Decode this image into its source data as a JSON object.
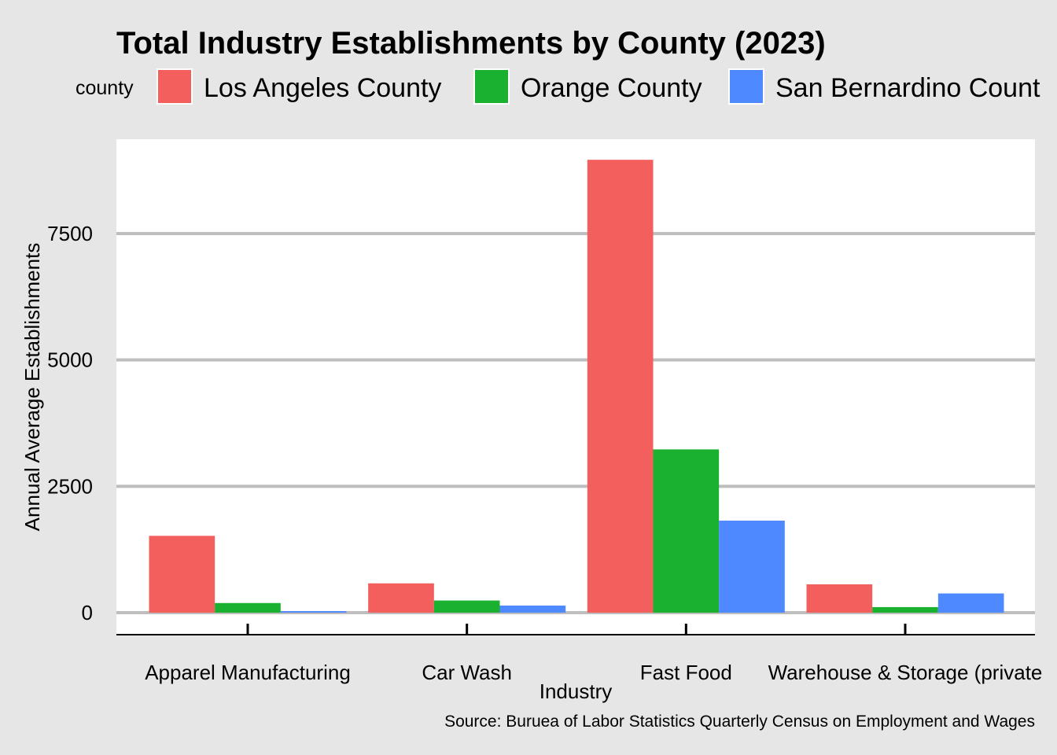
{
  "chart_data": {
    "type": "bar",
    "title": "Total Industry Establishments by County (2023)",
    "xlabel": "Industry",
    "ylabel": "Annual Average Establishments",
    "caption": "Source: Buruea of Labor Statistics Quarterly Census on Employment and Wages",
    "legend_title": "county",
    "legend_position": "top",
    "categories": [
      "Apparel Manufacturing",
      "Car Wash",
      "Fast Food",
      "Warehouse & Storage (private"
    ],
    "series": [
      {
        "name": "Los Angeles County",
        "color": "#F25F5C",
        "values": [
          1520,
          580,
          8960,
          560
        ]
      },
      {
        "name": "Orange County",
        "color": "#1AB130",
        "values": [
          190,
          240,
          3230,
          110
        ]
      },
      {
        "name": "San Bernardino Count",
        "color": "#4F89FF",
        "values": [
          30,
          140,
          1820,
          380
        ]
      }
    ],
    "yticks": [
      "0",
      "2500",
      "5000",
      "7500"
    ],
    "ytick_values": [
      0,
      2500,
      5000,
      7500
    ],
    "ylim": [
      -450,
      9400
    ],
    "grid": true,
    "panel_background": "#ffffff",
    "plot_background": "#e6e6e6"
  }
}
